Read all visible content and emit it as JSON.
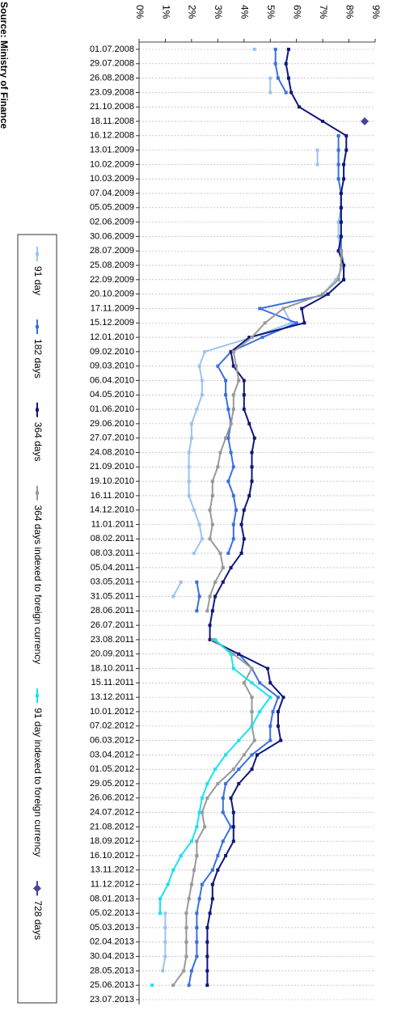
{
  "chart_data": {
    "type": "line",
    "orientation": "rotated",
    "source": "Source: Ministry of Finance",
    "categories": [
      "01.07.2008",
      "29.07.2008",
      "26.08.2008",
      "23.09.2008",
      "21.10.2008",
      "18.11.2008",
      "16.12.2008",
      "13.01.2009",
      "10.02.2009",
      "10.03.2009",
      "07.04.2009",
      "05.05.2009",
      "02.06.2009",
      "30.06.2009",
      "28.07.2009",
      "25.08.2009",
      "22.09.2009",
      "20.10.2009",
      "17.11.2009",
      "15.12.2009",
      "12.01.2010",
      "09.02.2010",
      "09.03.2010",
      "06.04.2010",
      "04.05.2010",
      "01.06.2010",
      "29.06.2010",
      "27.07.2010",
      "24.08.2010",
      "21.09.2010",
      "19.10.2010",
      "16.11.2010",
      "14.12.2010",
      "11.01.2011",
      "08.02.2011",
      "08.03.2011",
      "05.04.2011",
      "03.05.2011",
      "31.05.2011",
      "28.06.2011",
      "26.07.2011",
      "23.08.2011",
      "20.09.2011",
      "18.10.2011",
      "15.11.2011",
      "13.12.2011",
      "10.01.2012",
      "07.02.2012",
      "06.03.2012",
      "03.04.2012",
      "01.05.2012",
      "29.05.2012",
      "26.06.2012",
      "24.07.2012",
      "21.08.2012",
      "18.09.2012",
      "16.10.2012",
      "13.11.2012",
      "11.12.2012",
      "08.01.2013",
      "05.02.2013",
      "05.03.2013",
      "02.04.2013",
      "30.04.2013",
      "28.05.2013",
      "25.06.2013",
      "23.07.2013"
    ],
    "ylim": [
      0,
      9
    ],
    "yticks": [
      {
        "value": 0,
        "label": "0%"
      },
      {
        "value": 1,
        "label": "1%"
      },
      {
        "value": 2,
        "label": "2%"
      },
      {
        "value": 3,
        "label": "3%"
      },
      {
        "value": 4,
        "label": "4%"
      },
      {
        "value": 5,
        "label": "5%"
      },
      {
        "value": 6,
        "label": "6%"
      },
      {
        "value": 7,
        "label": "7%"
      },
      {
        "value": 8,
        "label": "8%"
      },
      {
        "value": 9,
        "label": "9%"
      }
    ],
    "series": [
      {
        "name": "91 day",
        "color": "#9cc3ee",
        "marker": "square",
        "values": [
          4.4,
          null,
          5.0,
          5.0,
          null,
          null,
          null,
          6.8,
          6.8,
          null,
          7.7,
          7.7,
          7.6,
          7.6,
          7.7,
          7.8,
          7.5,
          7.0,
          5.5,
          5.8,
          4.3,
          2.5,
          2.3,
          2.4,
          2.4,
          2.2,
          2.0,
          2.0,
          1.9,
          1.9,
          1.9,
          1.9,
          2.1,
          2.3,
          2.4,
          2.1,
          null,
          1.6,
          1.3,
          null,
          null,
          null,
          null,
          null,
          null,
          null,
          null,
          null,
          null,
          null,
          null,
          null,
          null,
          null,
          null,
          null,
          null,
          null,
          null,
          null,
          1.0,
          1.0,
          1.0,
          1.0,
          0.9,
          null,
          null
        ]
      },
      {
        "name": "182 days",
        "color": "#3c6fe0",
        "marker": "square",
        "values": [
          5.2,
          5.2,
          5.3,
          5.6,
          null,
          null,
          7.6,
          7.6,
          7.6,
          7.6,
          7.7,
          7.7,
          7.7,
          7.7,
          7.7,
          7.8,
          7.8,
          7.2,
          4.6,
          6.0,
          4.7,
          3.5,
          3.0,
          3.3,
          3.3,
          3.4,
          3.5,
          3.4,
          3.5,
          3.6,
          3.4,
          3.6,
          3.7,
          3.6,
          3.6,
          3.4,
          null,
          2.2,
          2.3,
          2.2,
          null,
          null,
          3.8,
          4.3,
          4.6,
          5.3,
          5.1,
          5.0,
          5.0,
          4.3,
          3.8,
          3.3,
          3.2,
          3.2,
          3.5,
          3.2,
          3.0,
          2.8,
          2.4,
          2.3,
          2.2,
          2.2,
          2.2,
          2.2,
          2.0,
          1.9,
          null
        ]
      },
      {
        "name": "364 days",
        "color": "#10177a",
        "marker": "square",
        "values": [
          5.7,
          5.6,
          5.7,
          5.8,
          6.1,
          7.0,
          7.9,
          7.9,
          7.8,
          7.8,
          7.7,
          7.7,
          7.7,
          7.7,
          7.6,
          7.8,
          7.8,
          7.2,
          6.2,
          6.3,
          4.2,
          3.5,
          3.6,
          4.0,
          4.0,
          4.0,
          4.2,
          4.4,
          4.3,
          4.3,
          4.3,
          4.2,
          4.0,
          3.9,
          4.0,
          3.9,
          3.5,
          3.2,
          2.9,
          2.8,
          2.7,
          2.7,
          3.8,
          4.9,
          5.0,
          5.5,
          5.3,
          5.3,
          5.4,
          4.5,
          4.3,
          3.8,
          3.5,
          3.6,
          3.6,
          3.6,
          3.3,
          3.0,
          2.8,
          2.8,
          2.7,
          2.6,
          2.6,
          2.6,
          2.6,
          2.6,
          null
        ]
      },
      {
        "name": "364 days indexed to foreign currency",
        "color": "#999999",
        "marker": "square",
        "values": [
          null,
          null,
          null,
          null,
          null,
          null,
          null,
          null,
          null,
          null,
          null,
          null,
          null,
          null,
          7.7,
          7.7,
          7.6,
          7.0,
          5.5,
          4.8,
          4.3,
          3.6,
          3.7,
          3.8,
          3.6,
          3.6,
          3.5,
          3.3,
          3.1,
          3.0,
          2.8,
          2.8,
          2.7,
          2.8,
          2.7,
          3.1,
          3.2,
          2.9,
          2.7,
          2.6,
          null,
          2.8,
          3.6,
          4.3,
          4.0,
          4.3,
          4.3,
          4.3,
          4.4,
          4.0,
          3.6,
          3.0,
          2.6,
          2.4,
          2.5,
          2.2,
          2.2,
          2.1,
          2.0,
          1.9,
          1.8,
          1.8,
          1.8,
          1.8,
          1.7,
          1.3,
          null
        ]
      },
      {
        "name": "91 day indexed to foreign currency",
        "color": "#19e3ee",
        "marker": "square",
        "values": [
          null,
          null,
          null,
          null,
          null,
          null,
          null,
          null,
          null,
          null,
          null,
          null,
          null,
          null,
          null,
          null,
          null,
          null,
          null,
          null,
          null,
          null,
          null,
          null,
          null,
          null,
          null,
          null,
          null,
          null,
          null,
          null,
          null,
          null,
          null,
          null,
          null,
          null,
          null,
          null,
          null,
          2.9,
          3.5,
          3.6,
          4.3,
          5.0,
          4.6,
          4.3,
          3.8,
          3.3,
          2.9,
          2.6,
          2.4,
          2.3,
          2.2,
          2.0,
          1.6,
          1.3,
          1.1,
          0.8,
          0.8,
          null,
          null,
          null,
          null,
          0.5,
          null
        ]
      },
      {
        "name": "728 days",
        "color": "#45459a",
        "marker": "diamond",
        "values": [
          null,
          null,
          null,
          null,
          null,
          8.6,
          null,
          null,
          null,
          null,
          null,
          null,
          null,
          null,
          null,
          null,
          null,
          null,
          null,
          null,
          null,
          null,
          null,
          null,
          null,
          null,
          null,
          null,
          null,
          null,
          null,
          null,
          null,
          null,
          null,
          null,
          null,
          null,
          null,
          null,
          null,
          null,
          null,
          null,
          null,
          null,
          null,
          null,
          null,
          null,
          null,
          null,
          null,
          null,
          null,
          null,
          null,
          null,
          null,
          null,
          null,
          null,
          null,
          null,
          null,
          null,
          null
        ]
      }
    ]
  }
}
